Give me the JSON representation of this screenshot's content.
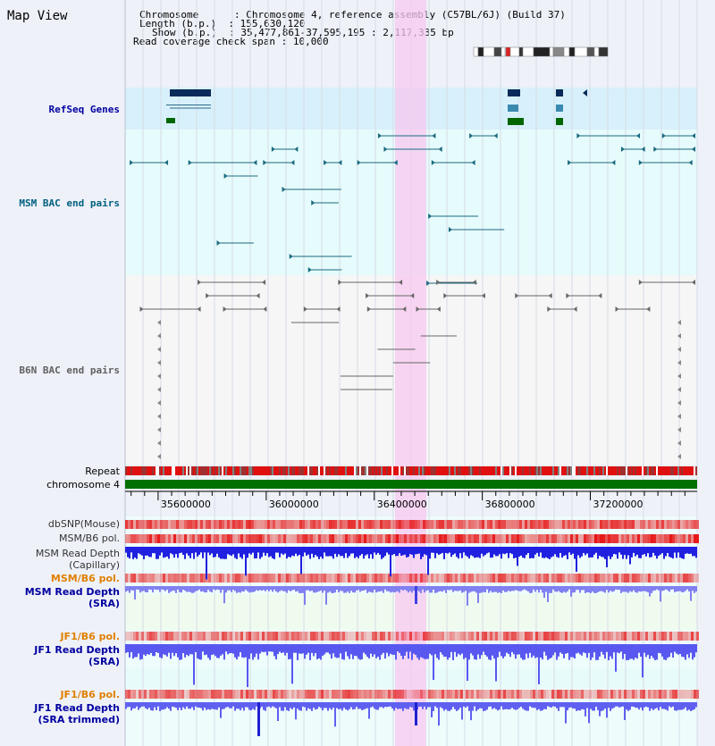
{
  "view": {
    "title": "Map View"
  },
  "header": {
    "lines": [
      {
        "key": "Chromosome",
        "value": "Chromosome 4, reference assembly (C57BL/6J) (Build 37)"
      },
      {
        "key": "Length (b.p.)",
        "value": "155,630,120"
      },
      {
        "key": "Show (b.p.)",
        "value": "35,477,861-37,595,195 : 2,117,335 bp"
      },
      {
        "key": "Read coverage check span",
        "value": "10,000"
      }
    ]
  },
  "tracks": {
    "refseq": "RefSeq Genes",
    "msm_bac": "MSM BAC end pairs",
    "b6n_bac": "B6N BAC end pairs",
    "repeat": "Repeat",
    "chromosome": "chromosome 4",
    "dbsnp": "dbSNP(Mouse)",
    "msm_pol": "MSM/B6 pol.",
    "msm_depth_cap": [
      "MSM Read Depth",
      "(Capillary)"
    ],
    "msm_pol2": "MSM/B6 pol.",
    "msm_depth_sra": [
      "MSM Read Depth",
      "(SRA)"
    ],
    "jf1_pol": "JF1/B6 pol.",
    "jf1_depth_sra": [
      "JF1 Read Depth",
      "(SRA)"
    ],
    "jf1_pol2": "JF1/B6 pol.",
    "jf1_depth_trim": [
      "JF1 Read Depth",
      "(SRA trimmed)"
    ]
  },
  "axis": {
    "start": 35477861,
    "end": 37595195,
    "ticks": [
      35600000,
      36000000,
      36400000,
      36800000,
      37200000
    ],
    "tick_labels": [
      "35600000",
      "36000000",
      "36400000",
      "36800000",
      "37200000"
    ]
  },
  "colors": {
    "refseq": "#000080",
    "msm_label": "#006080",
    "b6n_label": "#606060",
    "orange_label": "#e08000",
    "blue_label": "#0000a0",
    "highlight": "#f7c8f0",
    "chromosome_bar": "#007000"
  }
}
